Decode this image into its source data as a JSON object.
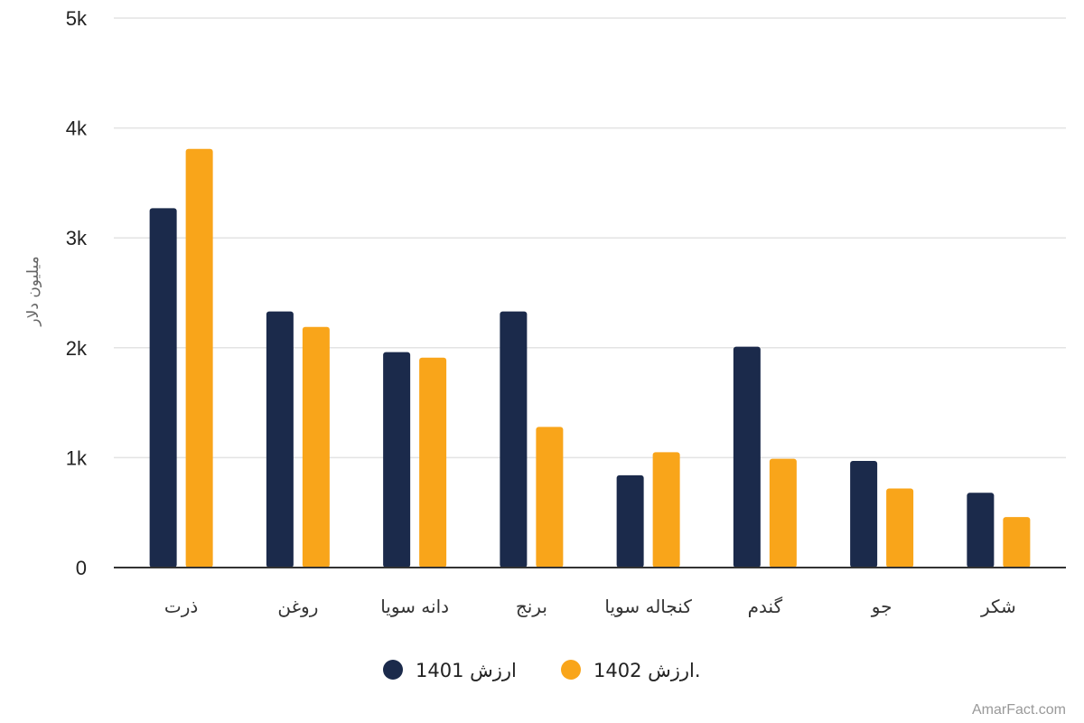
{
  "chart_data": {
    "type": "bar",
    "title": "",
    "xlabel": "",
    "ylabel": "میلیون دلار",
    "categories": [
      "ذرت",
      "روغن",
      "دانه سویا",
      "برنج",
      "کنجاله سویا",
      "گندم",
      "جو",
      "شکر"
    ],
    "series": [
      {
        "name": "ارزش 1401",
        "color": "#1b2a4b",
        "values": [
          3270,
          2330,
          1960,
          2330,
          840,
          2010,
          970,
          680
        ]
      },
      {
        "name": "ارزش 1402.",
        "color": "#f9a51a",
        "values": [
          3810,
          2190,
          1910,
          1280,
          1050,
          990,
          720,
          460
        ]
      }
    ],
    "ylim": [
      0,
      5000
    ],
    "yticks": [
      0,
      1000,
      2000,
      3000,
      4000,
      5000
    ],
    "ytick_labels": [
      "0",
      "1k",
      "2k",
      "3k",
      "4k",
      "5k"
    ],
    "grid": true,
    "legend_position": "bottom-center"
  },
  "credit": "AmarFact.com"
}
